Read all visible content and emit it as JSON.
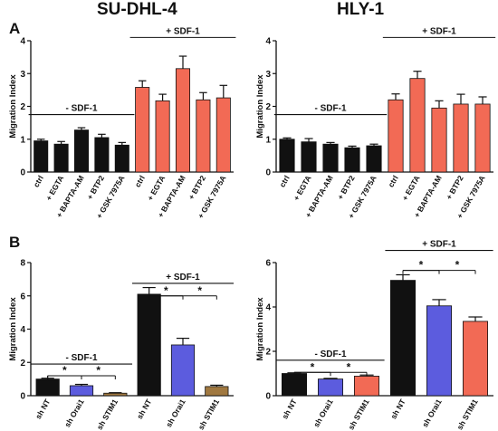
{
  "figure": {
    "col_titles": [
      "SU-DHL-4",
      "HLY-1"
    ],
    "panel_letters": [
      "A",
      "B"
    ]
  },
  "colors": {
    "black": "#111111",
    "red": "#f26a55",
    "blue": "#5c5cde",
    "brown": "#a07840"
  },
  "chart_data": [
    {
      "type": "bar",
      "panel": "A",
      "title": "SU-DHL-4",
      "ylabel": "Migration Index",
      "ylim": [
        0,
        4
      ],
      "yticks": [
        0,
        1,
        2,
        3,
        4
      ],
      "categories": [
        "ctrl",
        "+ EGTA",
        "+ BAPTA-AM",
        "+ BTP2",
        "+ GSK 7975A",
        "ctrl",
        "+ EGTA",
        "+ BAPTA-AM",
        "+ BTP2",
        "+ GSK 7975A"
      ],
      "values": [
        0.95,
        0.85,
        1.28,
        1.05,
        0.82,
        2.58,
        2.17,
        3.15,
        2.2,
        2.26
      ],
      "errors": [
        0.05,
        0.08,
        0.07,
        0.1,
        0.08,
        0.2,
        0.2,
        0.38,
        0.22,
        0.38
      ],
      "bar_colors": [
        "black",
        "black",
        "black",
        "black",
        "black",
        "red",
        "red",
        "red",
        "red",
        "red"
      ],
      "groups": [
        {
          "label": "- SDF-1",
          "from": 0,
          "to": 4,
          "y": 1.75
        },
        {
          "label": "+ SDF-1",
          "from": 5,
          "to": 9,
          "y": 4.1
        }
      ],
      "significance": []
    },
    {
      "type": "bar",
      "panel": "A",
      "title": "HLY-1",
      "ylabel": "Migration Index",
      "ylim": [
        0,
        4
      ],
      "yticks": [
        0,
        1,
        2,
        3,
        4
      ],
      "categories": [
        "ctrl",
        "+ EGTA",
        "+ BAPTA-AM",
        "+ BTP2",
        "+ GSK 7975A",
        "ctrl",
        "+ EGTA",
        "+ BAPTA-AM",
        "+ BTP2",
        "+ GSK 7975A"
      ],
      "values": [
        1.0,
        0.92,
        0.85,
        0.74,
        0.8,
        2.2,
        2.85,
        1.95,
        2.07,
        2.07
      ],
      "errors": [
        0.04,
        0.1,
        0.05,
        0.05,
        0.05,
        0.18,
        0.22,
        0.22,
        0.3,
        0.22
      ],
      "bar_colors": [
        "black",
        "black",
        "black",
        "black",
        "black",
        "red",
        "red",
        "red",
        "red",
        "red"
      ],
      "groups": [
        {
          "label": "- SDF-1",
          "from": 0,
          "to": 4,
          "y": 1.75
        },
        {
          "label": "+ SDF-1",
          "from": 5,
          "to": 9,
          "y": 4.1
        }
      ],
      "significance": []
    },
    {
      "type": "bar",
      "panel": "B",
      "title": "SU-DHL-4",
      "ylabel": "Migration Index",
      "ylim": [
        0,
        8
      ],
      "yticks": [
        0,
        2,
        4,
        6,
        8
      ],
      "categories": [
        "sh NT",
        "sh Orai1",
        "sh STIM1",
        "sh NT",
        "sh Orai1",
        "sh STIM1"
      ],
      "values": [
        1.0,
        0.6,
        0.15,
        6.1,
        3.05,
        0.55
      ],
      "errors": [
        0.05,
        0.08,
        0.03,
        0.4,
        0.4,
        0.08
      ],
      "bar_colors": [
        "black",
        "blue",
        "brown",
        "black",
        "blue",
        "brown"
      ],
      "groups": [
        {
          "label": "- SDF-1",
          "from": 0,
          "to": 2,
          "y": 1.9
        },
        {
          "label": "+ SDF-1",
          "from": 3,
          "to": 5,
          "y": 6.75
        }
      ],
      "significance": [
        {
          "from": 0,
          "to": 1,
          "y": 1.2,
          "label": "*"
        },
        {
          "from": 0,
          "to": 2,
          "y": 1.2,
          "label": "*"
        },
        {
          "from": 3,
          "to": 4,
          "y": 6.0,
          "label": "*"
        },
        {
          "from": 3,
          "to": 5,
          "y": 6.0,
          "label": "*"
        }
      ]
    },
    {
      "type": "bar",
      "panel": "B",
      "title": "HLY-1",
      "ylabel": "Migration Index",
      "ylim": [
        0,
        6
      ],
      "yticks": [
        0,
        2,
        4,
        6
      ],
      "categories": [
        "sh NT",
        "sh Orai1",
        "sh STIM1",
        "sh NT",
        "sh Orai1",
        "sh STIM1"
      ],
      "values": [
        1.0,
        0.75,
        0.88,
        5.2,
        4.05,
        3.35
      ],
      "errors": [
        0.03,
        0.03,
        0.05,
        0.25,
        0.28,
        0.2
      ],
      "bar_colors": [
        "black",
        "blue",
        "red",
        "black",
        "blue",
        "red"
      ],
      "groups": [
        {
          "label": "- SDF-1",
          "from": 0,
          "to": 2,
          "y": 1.6
        },
        {
          "label": "+ SDF-1",
          "from": 3,
          "to": 5,
          "y": 6.55
        }
      ],
      "significance": [
        {
          "from": 0,
          "to": 1,
          "y": 1.05,
          "label": "*"
        },
        {
          "from": 0,
          "to": 2,
          "y": 1.05,
          "label": "*"
        },
        {
          "from": 3,
          "to": 4,
          "y": 5.65,
          "label": "*"
        },
        {
          "from": 3,
          "to": 5,
          "y": 5.65,
          "label": "*"
        }
      ]
    }
  ]
}
